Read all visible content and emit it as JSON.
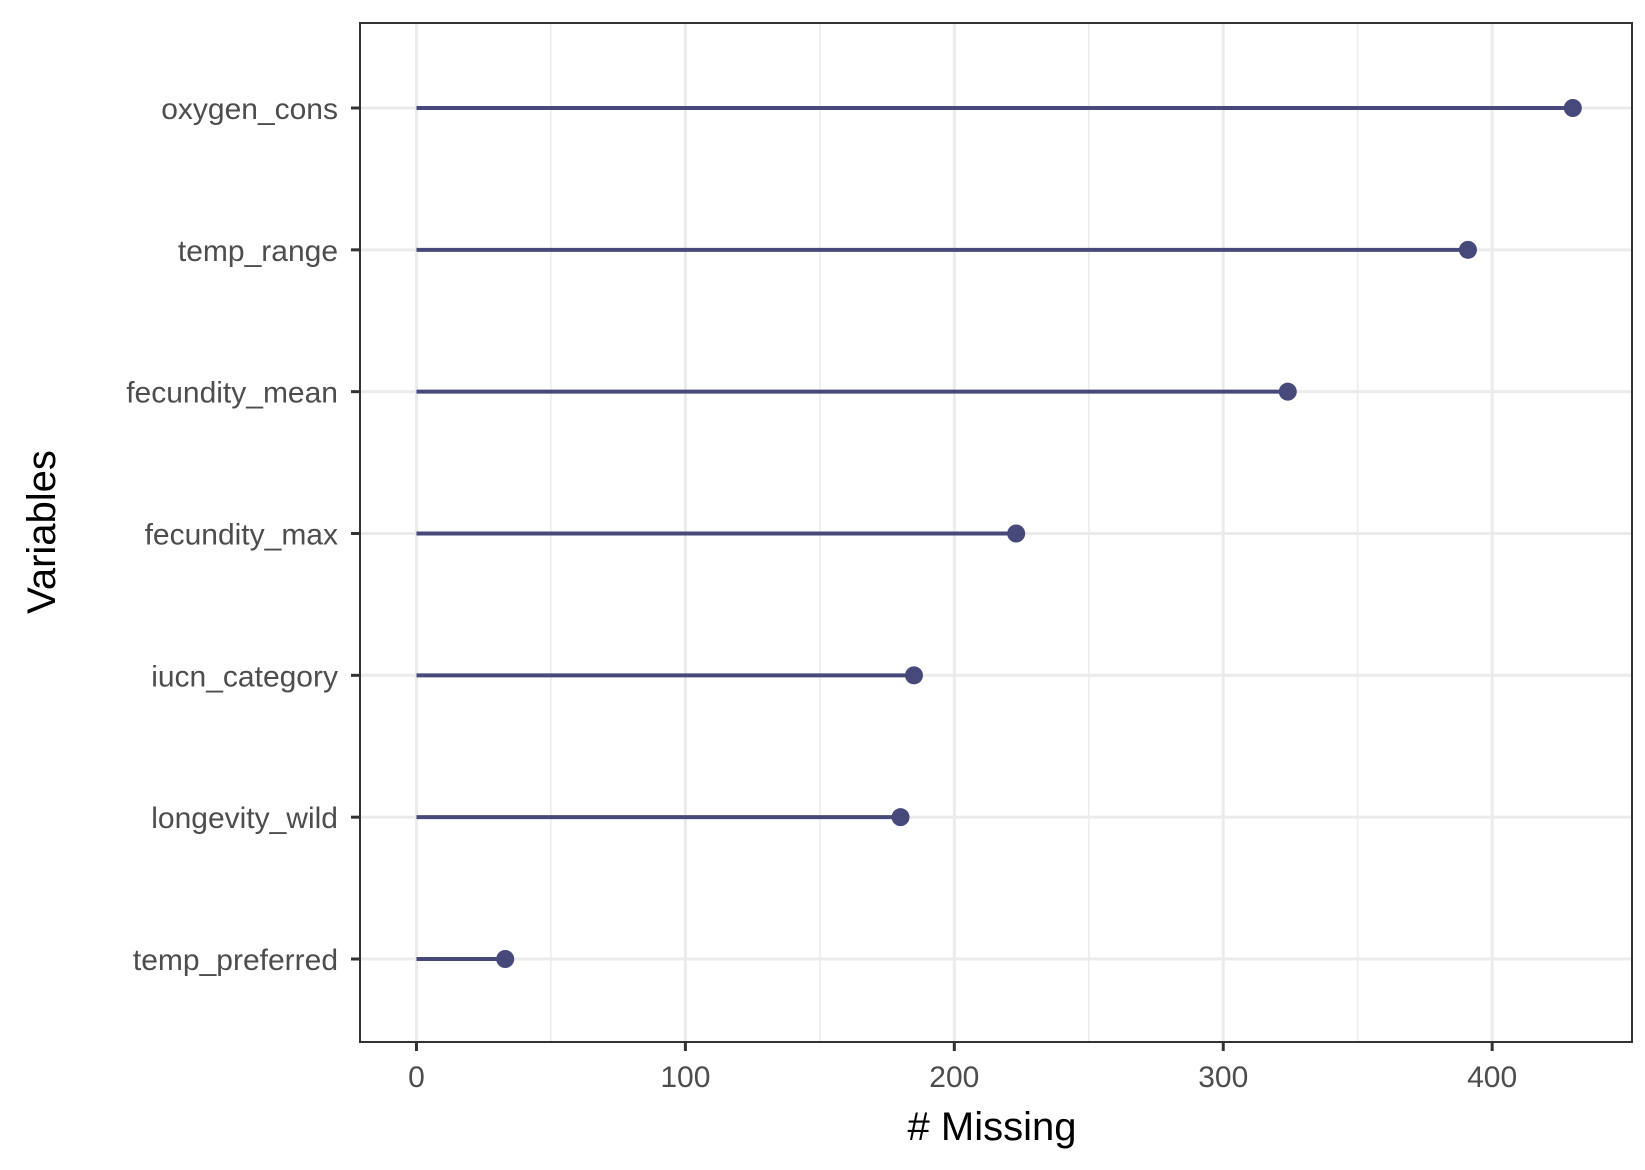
{
  "chart_data": {
    "type": "lollipop",
    "xlabel": "# Missing",
    "ylabel": "Variables",
    "xlim": [
      -21,
      452
    ],
    "x_ticks": [
      0,
      100,
      200,
      300,
      400
    ],
    "x_minor_ticks": [
      50,
      150,
      250,
      350
    ],
    "grid": true,
    "legend": "none",
    "categories": [
      "oxygen_cons",
      "temp_range",
      "fecundity_mean",
      "fecundity_max",
      "iucn_category",
      "longevity_wild",
      "temp_preferred"
    ],
    "values": [
      430,
      391,
      324,
      223,
      185,
      180,
      33
    ],
    "colors": {
      "marker": "#47497a",
      "grid": "#ebebeb",
      "panel_border": "#333333",
      "tick_text": "#4d4d4d"
    }
  }
}
